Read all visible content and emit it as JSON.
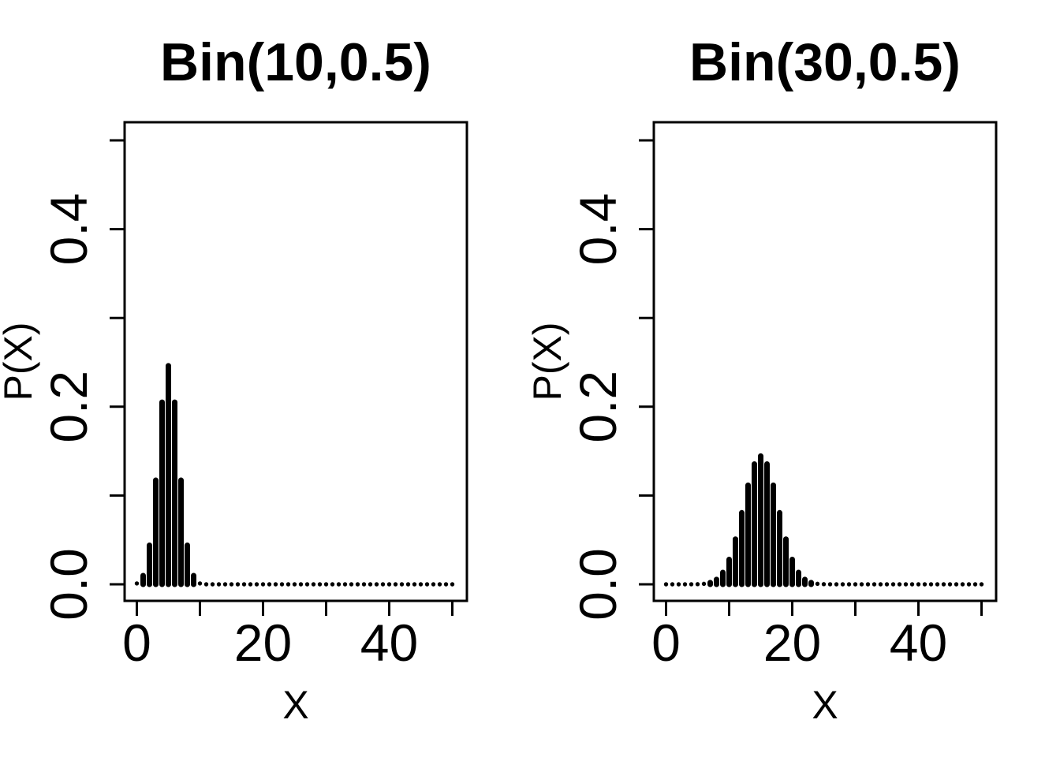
{
  "page": {
    "background": "#ffffff",
    "ink": "#000000"
  },
  "chart_data": [
    {
      "type": "bar",
      "style": "stem-pmf",
      "title": "Bin(10,0.5)",
      "xlabel": "X",
      "ylabel": "P(X)",
      "xlim": [
        0,
        50
      ],
      "ylim": [
        0,
        0.5
      ],
      "grid": false,
      "x_ticks": [
        0,
        10,
        20,
        30,
        40,
        50
      ],
      "x_tick_labels": [
        "0",
        "",
        "20",
        "",
        "40",
        ""
      ],
      "y_ticks": [
        0,
        0.1,
        0.2,
        0.3,
        0.4,
        0.5
      ],
      "y_tick_labels": [
        "0.0",
        "",
        "0.2",
        "",
        "0.4",
        ""
      ],
      "x": [
        0,
        1,
        2,
        3,
        4,
        5,
        6,
        7,
        8,
        9,
        10,
        11,
        12,
        13,
        14,
        15,
        16,
        17,
        18,
        19,
        20,
        21,
        22,
        23,
        24,
        25,
        26,
        27,
        28,
        29,
        30,
        31,
        32,
        33,
        34,
        35,
        36,
        37,
        38,
        39,
        40,
        41,
        42,
        43,
        44,
        45,
        46,
        47,
        48,
        49,
        50
      ],
      "values": [
        0.000977,
        0.009766,
        0.043945,
        0.117188,
        0.205078,
        0.246094,
        0.205078,
        0.117188,
        0.043945,
        0.009766,
        0.000977,
        0,
        0,
        0,
        0,
        0,
        0,
        0,
        0,
        0,
        0,
        0,
        0,
        0,
        0,
        0,
        0,
        0,
        0,
        0,
        0,
        0,
        0,
        0,
        0,
        0,
        0,
        0,
        0,
        0,
        0,
        0,
        0,
        0,
        0,
        0,
        0,
        0,
        0,
        0,
        0
      ]
    },
    {
      "type": "bar",
      "style": "stem-pmf",
      "title": "Bin(30,0.5)",
      "xlabel": "X",
      "ylabel": "P(X)",
      "xlim": [
        0,
        50
      ],
      "ylim": [
        0,
        0.5
      ],
      "grid": false,
      "x_ticks": [
        0,
        10,
        20,
        30,
        40,
        50
      ],
      "x_tick_labels": [
        "0",
        "",
        "20",
        "",
        "40",
        ""
      ],
      "y_ticks": [
        0,
        0.1,
        0.2,
        0.3,
        0.4,
        0.5
      ],
      "y_tick_labels": [
        "0.0",
        "",
        "0.2",
        "",
        "0.4",
        ""
      ],
      "x": [
        0,
        1,
        2,
        3,
        4,
        5,
        6,
        7,
        8,
        9,
        10,
        11,
        12,
        13,
        14,
        15,
        16,
        17,
        18,
        19,
        20,
        21,
        22,
        23,
        24,
        25,
        26,
        27,
        28,
        29,
        30,
        31,
        32,
        33,
        34,
        35,
        36,
        37,
        38,
        39,
        40,
        41,
        42,
        43,
        44,
        45,
        46,
        47,
        48,
        49,
        50
      ],
      "values": [
        0,
        0,
        0,
        4e-06,
        2.6e-05,
        0.000133,
        0.000553,
        0.001896,
        0.005451,
        0.013325,
        0.027982,
        0.050876,
        0.080553,
        0.111535,
        0.135435,
        0.144464,
        0.135435,
        0.111535,
        0.080553,
        0.050876,
        0.027982,
        0.013325,
        0.005451,
        0.001896,
        0.000553,
        0.000133,
        2.6e-05,
        4e-06,
        0,
        0,
        0,
        0,
        0,
        0,
        0,
        0,
        0,
        0,
        0,
        0,
        0,
        0,
        0,
        0,
        0,
        0,
        0,
        0,
        0,
        0,
        0
      ]
    }
  ]
}
